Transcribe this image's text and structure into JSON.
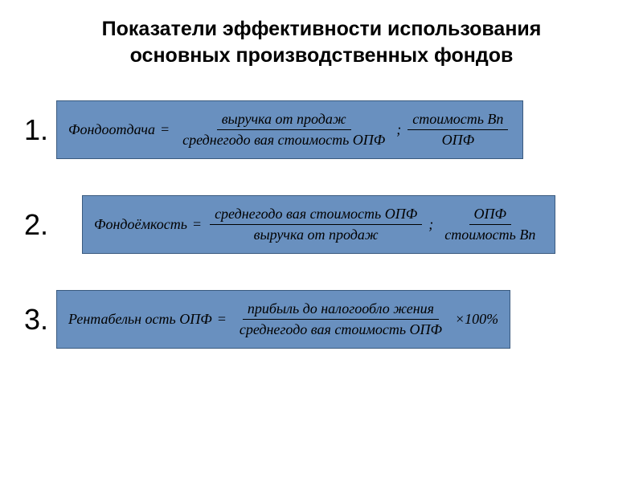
{
  "title_line1": "Показатели эффективности использования",
  "title_line2": "основных производственных фондов",
  "formulas": [
    {
      "number": "1.",
      "lhs": "Фондоотдача",
      "frac1_num": "выручка от продаж",
      "frac1_den": "среднегодо вая стоимость ОПФ",
      "sep": ";",
      "frac2_num": "стоимость Вп",
      "frac2_den": "ОПФ",
      "suffix": ""
    },
    {
      "number": "2.",
      "lhs": "Фондоёмкость",
      "frac1_num": "среднегодо вая стоимость ОПФ",
      "frac1_den": "выручка от продаж",
      "sep": ";",
      "frac2_num": "ОПФ",
      "frac2_den": "стоимость Вп",
      "suffix": ""
    },
    {
      "number": "3.",
      "lhs": "Рентабельн ость ОПФ",
      "frac1_num": "прибыль до налогообло жения",
      "frac1_den": "среднегодо вая стоимость ОПФ",
      "sep": "",
      "frac2_num": "",
      "frac2_den": "",
      "suffix": "×100%"
    }
  ],
  "colors": {
    "box_bg": "#6990bf",
    "box_border": "#3a5a7f",
    "text": "#000000",
    "page_bg": "#ffffff"
  }
}
